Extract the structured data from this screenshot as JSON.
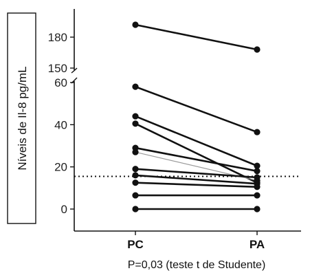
{
  "chart_data": {
    "type": "line",
    "ylabel": "Níveis de Il-8 pg/mL",
    "footnote": "P=0,03 (teste t de Studente)",
    "categories": [
      "PC",
      "PA"
    ],
    "y_axis_break": {
      "lower": [
        0,
        60
      ],
      "upper": [
        150,
        195
      ]
    },
    "y_ticks": [
      0,
      20,
      40,
      60,
      150,
      180
    ],
    "reference_line": {
      "y": 15.5,
      "style": "dotted"
    },
    "series": [
      {
        "values": [
          192,
          168
        ]
      },
      {
        "values": [
          58,
          36.5
        ]
      },
      {
        "values": [
          44,
          20.5
        ]
      },
      {
        "values": [
          40.5,
          12.5
        ]
      },
      {
        "values": [
          29,
          18
        ]
      },
      {
        "values": [
          27,
          13.5
        ],
        "thin": true
      },
      {
        "values": [
          19,
          15
        ]
      },
      {
        "values": [
          16,
          12
        ]
      },
      {
        "values": [
          12.5,
          10.5
        ]
      },
      {
        "values": [
          6.5,
          6.5
        ]
      },
      {
        "values": [
          0,
          0
        ]
      }
    ]
  }
}
